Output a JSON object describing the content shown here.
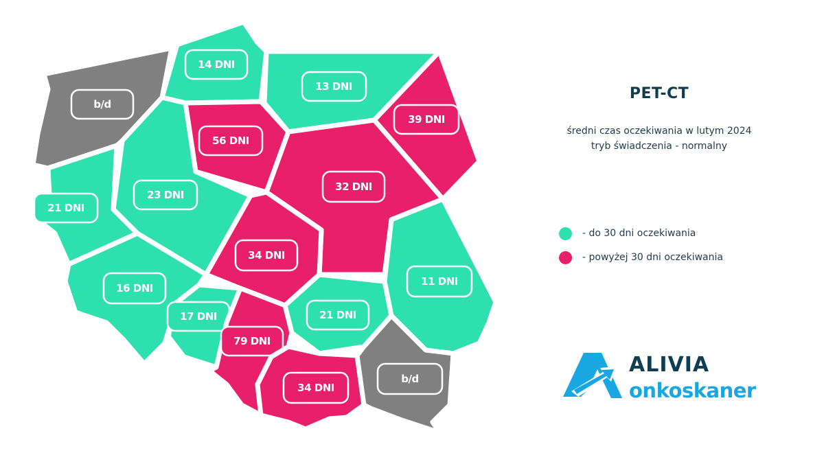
{
  "title": "PET-CT",
  "subtitle": {
    "line1": "średni czas oczekiwania w lutym 2024",
    "line2": "tryb świadczenia - normalny"
  },
  "legend": [
    {
      "color": "#2ee0b0",
      "text": "- do 30 dni oczekiwania"
    },
    {
      "color": "#e8206a",
      "text": "- powyżej 30 dni oczekiwania"
    }
  ],
  "colors": {
    "green": "#2ee0b0",
    "pink": "#e8206a",
    "gray": "#808080"
  },
  "regions": [
    {
      "id": "zachodniopomorskie",
      "label": "b/d",
      "status": "gray"
    },
    {
      "id": "pomorskie",
      "label": "14 DNI",
      "status": "green"
    },
    {
      "id": "warminsko-mazurskie",
      "label": "13 DNI",
      "status": "green"
    },
    {
      "id": "podlaskie",
      "label": "39 DNI",
      "status": "pink"
    },
    {
      "id": "kujawsko-pomorskie",
      "label": "56 DNI",
      "status": "pink"
    },
    {
      "id": "mazowieckie",
      "label": "32 DNI",
      "status": "pink"
    },
    {
      "id": "wielkopolskie",
      "label": "23 DNI",
      "status": "green"
    },
    {
      "id": "lubuskie",
      "label": "21 DNI",
      "status": "green"
    },
    {
      "id": "lodzkie",
      "label": "34 DNI",
      "status": "pink"
    },
    {
      "id": "lubelskie",
      "label": "11 DNI",
      "status": "green"
    },
    {
      "id": "dolnoslaskie",
      "label": "16 DNI",
      "status": "green"
    },
    {
      "id": "opolskie",
      "label": "17 DNI",
      "status": "green"
    },
    {
      "id": "swietokrzyskie",
      "label": "21 DNI",
      "status": "green"
    },
    {
      "id": "slaskie",
      "label": "79 DNI",
      "status": "pink"
    },
    {
      "id": "malopolskie",
      "label": "34 DNI",
      "status": "pink"
    },
    {
      "id": "podkarpackie",
      "label": "b/d",
      "status": "gray"
    }
  ],
  "logo": {
    "brand": "ALIVIA",
    "sub": "onkoskaner"
  }
}
